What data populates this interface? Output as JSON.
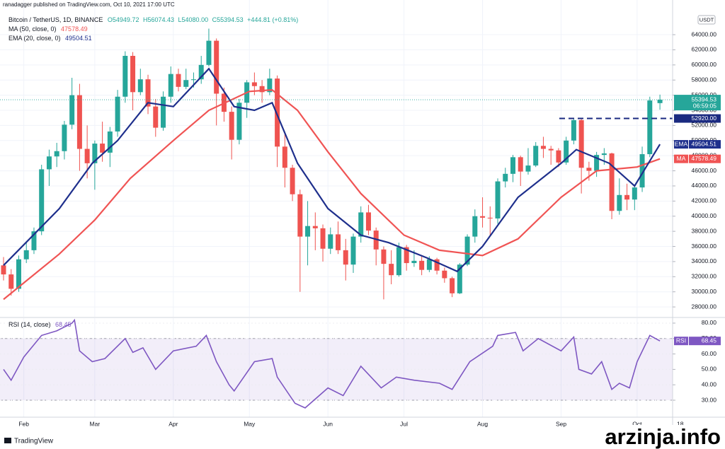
{
  "header": {
    "publisher": "ranadagger published on TradingView.com, Oct 10, 2021 17:00 UTC",
    "symbol": "Bitcoin / TetherUS, 1D, BINANCE",
    "ohlc": [
      "O54949.72",
      "H56074.43",
      "L54080.00",
      "C55394.53",
      "+444.81 (+0.81%)"
    ],
    "currency": "USDT",
    "countdown": "06:59:05",
    "brand": "TradingView",
    "watermark": "arzinja.info"
  },
  "chart_data": [
    {
      "type": "candlestick",
      "up_color": "#26a69a",
      "down_color": "#ef5350",
      "xlim": [
        -1.4,
        264
      ],
      "xticks": [
        {
          "value": 8,
          "label": "Feb"
        },
        {
          "value": 36,
          "label": "Mar"
        },
        {
          "value": 67,
          "label": "Apr"
        },
        {
          "value": 97,
          "label": "May"
        },
        {
          "value": 128,
          "label": "Jun"
        },
        {
          "value": 158,
          "label": "Jul"
        },
        {
          "value": 189,
          "label": "Aug"
        },
        {
          "value": 220,
          "label": "Sep"
        },
        {
          "value": 250,
          "label": "Oct"
        },
        {
          "value": 267,
          "label": "18"
        }
      ],
      "ylim": [
        26700,
        67650
      ],
      "yticks": [
        {
          "value": 28000,
          "label": "28000.00"
        },
        {
          "value": 30000,
          "label": "30000.00"
        },
        {
          "value": 32000,
          "label": "32000.00"
        },
        {
          "value": 34000,
          "label": "34000.00"
        },
        {
          "value": 36000,
          "label": "36000.00"
        },
        {
          "value": 38000,
          "label": "38000.00"
        },
        {
          "value": 40000,
          "label": "40000.00"
        },
        {
          "value": 42000,
          "label": "42000.00"
        },
        {
          "value": 44000,
          "label": "44000.00"
        },
        {
          "value": 46000,
          "label": "46000.00"
        },
        {
          "value": 48000,
          "label": "48000.00"
        },
        {
          "value": 50000,
          "label": "50000.00"
        },
        {
          "value": 52000,
          "label": "52000.00"
        },
        {
          "value": 54000,
          "label": "54000.00"
        },
        {
          "value": 56000,
          "label": "56000.00"
        },
        {
          "value": 58000,
          "label": "58000.00"
        },
        {
          "value": 60000,
          "label": "60000.00"
        },
        {
          "value": 62000,
          "label": "62000.00"
        },
        {
          "value": 64000,
          "label": "64000.00"
        }
      ],
      "grid": true,
      "level": {
        "value": 52920,
        "label": "52920.00",
        "color": "#1a2a80"
      },
      "x": [
        0,
        3,
        6,
        9,
        12,
        15,
        18,
        21,
        24,
        27,
        30,
        33,
        36,
        39,
        42,
        45,
        48,
        51,
        54,
        57,
        60,
        63,
        66,
        69,
        72,
        75,
        78,
        81,
        84,
        87,
        90,
        93,
        96,
        99,
        102,
        105,
        108,
        111,
        114,
        117,
        120,
        123,
        126,
        129,
        132,
        135,
        138,
        141,
        144,
        147,
        150,
        153,
        156,
        159,
        162,
        165,
        168,
        171,
        174,
        177,
        180,
        183,
        186,
        189,
        192,
        195,
        198,
        201,
        204,
        207,
        210,
        213,
        216,
        219,
        222,
        225,
        228,
        231,
        234,
        237,
        240,
        243,
        246,
        249,
        252,
        255,
        259
      ],
      "candles": [
        [
          33500,
          34600,
          31500,
          32300
        ],
        [
          32300,
          33000,
          29500,
          30400
        ],
        [
          30400,
          34800,
          30000,
          34300
        ],
        [
          34300,
          36500,
          33800,
          35500
        ],
        [
          35500,
          38500,
          35000,
          38000
        ],
        [
          38000,
          46800,
          37500,
          46200
        ],
        [
          46200,
          48800,
          44000,
          47900
        ],
        [
          47900,
          49700,
          46500,
          48600
        ],
        [
          48600,
          52600,
          47500,
          52100
        ],
        [
          52100,
          58300,
          51500,
          56000
        ],
        [
          56000,
          57500,
          46000,
          48900
        ],
        [
          48900,
          52000,
          45000,
          47000
        ],
        [
          47000,
          50000,
          43500,
          49600
        ],
        [
          49600,
          52500,
          47200,
          48400
        ],
        [
          48400,
          51800,
          46500,
          51200
        ],
        [
          51200,
          56700,
          50500,
          55800
        ],
        [
          55800,
          61800,
          55000,
          61200
        ],
        [
          61200,
          61700,
          54000,
          56400
        ],
        [
          56400,
          59500,
          56000,
          58100
        ],
        [
          58100,
          58700,
          53500,
          54500
        ],
        [
          54500,
          55500,
          50500,
          51700
        ],
        [
          51700,
          56500,
          51300,
          55800
        ],
        [
          55800,
          59800,
          55000,
          58800
        ],
        [
          58800,
          59500,
          56500,
          57100
        ],
        [
          57100,
          59500,
          56800,
          58000
        ],
        [
          58000,
          59000,
          57000,
          58100
        ],
        [
          58100,
          61200,
          57500,
          60000
        ],
        [
          60000,
          64800,
          59800,
          63200
        ],
        [
          63200,
          63500,
          52000,
          56200
        ],
        [
          56200,
          57000,
          52500,
          53800
        ],
        [
          53800,
          54500,
          47500,
          50100
        ],
        [
          50100,
          55500,
          49500,
          55000
        ],
        [
          55000,
          58000,
          53000,
          57700
        ],
        [
          57700,
          59000,
          56000,
          57200
        ],
        [
          57200,
          58000,
          55000,
          56400
        ],
        [
          56400,
          59500,
          56000,
          58200
        ],
        [
          58200,
          58600,
          46500,
          49200
        ],
        [
          49200,
          51000,
          43800,
          46400
        ],
        [
          46400,
          46800,
          42000,
          42900
        ],
        [
          42900,
          43500,
          30000,
          37300
        ],
        [
          37300,
          42000,
          33500,
          38700
        ],
        [
          38700,
          40500,
          35500,
          38400
        ],
        [
          38400,
          38900,
          34000,
          35700
        ],
        [
          35700,
          38500,
          35000,
          37600
        ],
        [
          37600,
          39300,
          35000,
          35500
        ],
        [
          35500,
          37000,
          31500,
          33600
        ],
        [
          33600,
          37700,
          32500,
          37300
        ],
        [
          37300,
          41300,
          36500,
          40500
        ],
        [
          40500,
          41500,
          37500,
          38100
        ],
        [
          38100,
          38500,
          33500,
          35600
        ],
        [
          35600,
          36000,
          29000,
          33700
        ],
        [
          33700,
          35500,
          31000,
          32200
        ],
        [
          32200,
          36500,
          32000,
          35900
        ],
        [
          35900,
          36200,
          32800,
          33800
        ],
        [
          33800,
          35500,
          33300,
          34100
        ],
        [
          34100,
          34800,
          32200,
          32900
        ],
        [
          32900,
          34700,
          32600,
          34300
        ],
        [
          34300,
          34500,
          32300,
          32800
        ],
        [
          32800,
          33200,
          31200,
          31800
        ],
        [
          31800,
          32000,
          29300,
          29800
        ],
        [
          29800,
          33800,
          29700,
          33600
        ],
        [
          33600,
          37600,
          33400,
          37300
        ],
        [
          37300,
          40900,
          36500,
          40000
        ],
        [
          40000,
          42500,
          38500,
          39800
        ],
        [
          39800,
          41300,
          37500,
          39700
        ],
        [
          39700,
          45000,
          39000,
          44600
        ],
        [
          44600,
          46400,
          43800,
          45600
        ],
        [
          45600,
          48100,
          44500,
          47800
        ],
        [
          47800,
          48000,
          44000,
          45900
        ],
        [
          45900,
          49000,
          45500,
          46700
        ],
        [
          46700,
          49800,
          46500,
          49300
        ],
        [
          49300,
          50500,
          47700,
          48900
        ],
        [
          48900,
          49300,
          46800,
          48700
        ],
        [
          48700,
          49000,
          46500,
          47100
        ],
        [
          47100,
          50500,
          46800,
          50000
        ],
        [
          50000,
          52900,
          49500,
          52700
        ],
        [
          52700,
          52900,
          43000,
          46400
        ],
        [
          46400,
          47200,
          44700,
          46000
        ],
        [
          46000,
          48500,
          45200,
          48100
        ],
        [
          48100,
          49000,
          46800,
          48300
        ],
        [
          48300,
          48400,
          39600,
          40700
        ],
        [
          40700,
          45000,
          40200,
          42800
        ],
        [
          42800,
          44300,
          40800,
          42200
        ],
        [
          42200,
          44100,
          40800,
          43800
        ],
        [
          43800,
          49200,
          43200,
          48200
        ],
        [
          48200,
          55800,
          47800,
          55300
        ],
        [
          54949.72,
          56074.43,
          54080,
          55394.53
        ]
      ],
      "series": [
        {
          "name": "MA (50, close, 0)",
          "tag": "MA",
          "color": "#f05454",
          "x": [
            0,
            22,
            36,
            50,
            67,
            81,
            97,
            106,
            116,
            128,
            141,
            158,
            172,
            189,
            203,
            220,
            234,
            250,
            259
          ],
          "values": [
            29000,
            35000,
            39500,
            45000,
            50000,
            54000,
            56500,
            56700,
            54000,
            48500,
            43000,
            37500,
            35500,
            34800,
            37000,
            42500,
            46000,
            46500,
            47578.49
          ]
        },
        {
          "name": "EMA (20, close, 0)",
          "tag": "EMA",
          "color": "#1e2f8c",
          "x": [
            0,
            22,
            35,
            45,
            57,
            67,
            81,
            91,
            99,
            106,
            116,
            128,
            141,
            152,
            167,
            179,
            189,
            203,
            220,
            226,
            239,
            249,
            259
          ],
          "values": [
            33500,
            41000,
            47000,
            50000,
            55000,
            54500,
            59500,
            54500,
            54000,
            55000,
            47000,
            41000,
            37500,
            36500,
            34500,
            32700,
            36000,
            42500,
            47000,
            48800,
            47000,
            44000,
            49504.51
          ]
        }
      ]
    },
    {
      "type": "line",
      "title": "RSI (14, close)",
      "tag": "RSI",
      "color": "#7e57c2",
      "ylim": [
        19,
        83.2
      ],
      "yticks": [
        {
          "value": 30,
          "label": "30.00"
        },
        {
          "value": 40,
          "label": "40.00"
        },
        {
          "value": 50,
          "label": "50.00"
        },
        {
          "value": 60,
          "label": "60.00"
        },
        {
          "value": 70,
          "label": "70.00"
        },
        {
          "value": 80,
          "label": "80.00"
        }
      ],
      "band": [
        30,
        70
      ],
      "x": [
        0,
        3,
        8,
        15,
        21,
        27,
        28,
        30,
        35,
        40,
        48,
        51,
        55,
        60,
        67,
        76,
        80,
        84,
        89,
        91,
        99,
        106,
        108,
        115,
        119,
        128,
        134,
        141,
        149,
        155,
        162,
        172,
        177,
        184,
        193,
        195,
        202,
        205,
        211,
        220,
        225,
        227,
        232,
        236,
        240,
        243,
        247,
        250,
        255,
        259
      ],
      "values": [
        50,
        43,
        58,
        72,
        75,
        80,
        82,
        62,
        55,
        57,
        70,
        61,
        64,
        50,
        62,
        65,
        72,
        55,
        40,
        36,
        55,
        57,
        45,
        28,
        25,
        38,
        33,
        52,
        38,
        45,
        43,
        41,
        37,
        55,
        65,
        72,
        74,
        62,
        70,
        62,
        71,
        50,
        47,
        55,
        37,
        41,
        38,
        55,
        72,
        68.45
      ]
    }
  ]
}
